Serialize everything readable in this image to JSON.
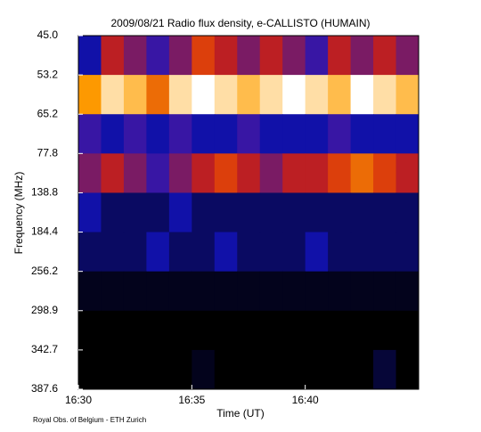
{
  "chart_data": {
    "type": "heatmap",
    "title": "2009/08/21  Radio flux density, e-CALLISTO (HUMAIN)",
    "x_label": "Time (UT)",
    "y_label": "Frequency (MHz)",
    "footnote": "Royal Obs. of Belgium - ETH Zurich",
    "xlim": [
      "16:30",
      "16:45"
    ],
    "xticks": [
      "16:30",
      "16:35",
      "16:40"
    ],
    "yticks": [
      "45.0",
      "53.2",
      "65.2",
      "77.8",
      "138.8",
      "184.4",
      "256.2",
      "298.9",
      "342.7",
      "387.6"
    ],
    "colors": [
      "#000000",
      "#1414c8",
      "#d02010",
      "#ffa000",
      "#ffffff"
    ],
    "values": [
      [
        30,
        45,
        40,
        35,
        40,
        50,
        45,
        40,
        45,
        40,
        35,
        45,
        40,
        45,
        40
      ],
      [
        60,
        70,
        65,
        55,
        70,
        75,
        70,
        65,
        70,
        75,
        70,
        65,
        75,
        70,
        65
      ],
      [
        35,
        30,
        35,
        30,
        35,
        30,
        30,
        35,
        30,
        30,
        30,
        35,
        30,
        30,
        30
      ],
      [
        40,
        45,
        40,
        35,
        40,
        45,
        50,
        45,
        40,
        45,
        45,
        50,
        55,
        50,
        45
      ],
      [
        30,
        25,
        25,
        25,
        30,
        25,
        25,
        25,
        25,
        25,
        25,
        25,
        25,
        25,
        25
      ],
      [
        25,
        25,
        25,
        30,
        25,
        25,
        30,
        25,
        25,
        25,
        30,
        25,
        25,
        25,
        25
      ],
      [
        20,
        20,
        20,
        20,
        20,
        20,
        20,
        20,
        20,
        20,
        20,
        20,
        20,
        20,
        20
      ],
      [
        18,
        18,
        18,
        18,
        18,
        18,
        18,
        18,
        18,
        18,
        18,
        18,
        18,
        18,
        18
      ],
      [
        18,
        18,
        18,
        18,
        18,
        20,
        18,
        18,
        18,
        18,
        18,
        18,
        18,
        22,
        18
      ]
    ]
  }
}
